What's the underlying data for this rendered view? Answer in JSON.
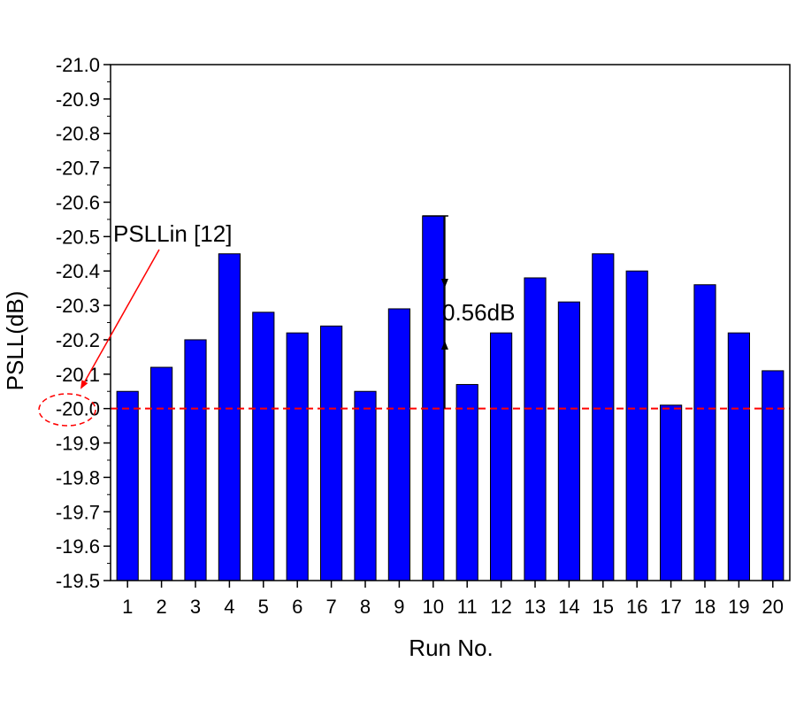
{
  "chart_data": {
    "type": "bar",
    "xlabel": "Run No.",
    "ylabel": "PSLL(dB)",
    "ylim": [
      -19.5,
      -21.0
    ],
    "y_direction": "reversed (more negative values upward)",
    "grid": false,
    "yticks": [
      "-21.0",
      "-20.9",
      "-20.8",
      "-20.7",
      "-20.6",
      "-20.5",
      "-20.4",
      "-20.3",
      "-20.2",
      "-20.1",
      "-20.0",
      "-19.9",
      "-19.8",
      "-19.7",
      "-19.6",
      "-19.5"
    ],
    "categories": [
      "1",
      "2",
      "3",
      "4",
      "5",
      "6",
      "7",
      "8",
      "9",
      "10",
      "11",
      "12",
      "13",
      "14",
      "15",
      "16",
      "17",
      "18",
      "19",
      "20"
    ],
    "values": [
      -20.05,
      -20.12,
      -20.2,
      -20.45,
      -20.28,
      -20.22,
      -20.24,
      -20.05,
      -20.29,
      -20.56,
      -20.07,
      -20.22,
      -20.38,
      -20.31,
      -20.45,
      -20.4,
      -20.01,
      -20.36,
      -20.22,
      -20.11
    ],
    "bar_color": "#0000ff",
    "reference_line": {
      "value": -20.0,
      "color": "#ff0000",
      "style": "dashed"
    },
    "annotations": {
      "reference_label": "PSLLin [12]",
      "difference_label": "0.56dB"
    }
  }
}
